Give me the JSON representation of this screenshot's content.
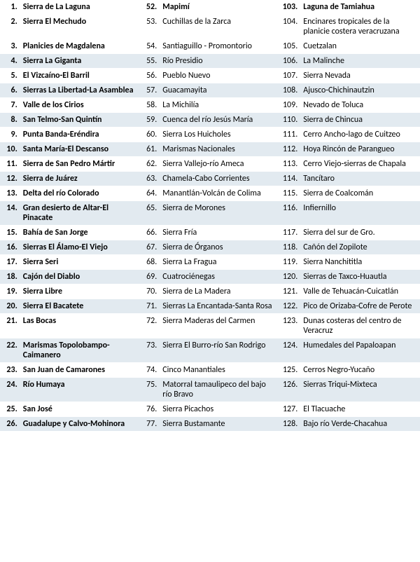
{
  "columns": [
    {
      "start": 1,
      "bold": true
    },
    {
      "start": 52,
      "bold": false
    },
    {
      "start": 103,
      "bold": false
    }
  ],
  "boldRow": 0,
  "rows": [
    {
      "shaded": false,
      "items": [
        "Sierra de La Laguna",
        "Mapimí",
        "Laguna de Tamiahua"
      ]
    },
    {
      "shaded": false,
      "items": [
        "Sierra El Mechudo",
        "Cuchillas de la Zarca",
        "Encinares tropicales de la planicie costera veracruzana"
      ]
    },
    {
      "shaded": false,
      "items": [
        "Planicies de Magdalena",
        "Santiaguillo - Promontorio",
        "Cuetzalan"
      ]
    },
    {
      "shaded": true,
      "items": [
        "Sierra La Giganta",
        "Río Presidio",
        "La Malinche"
      ]
    },
    {
      "shaded": false,
      "items": [
        "El Vizcaíno-El Barril",
        "Pueblo Nuevo",
        "Sierra Nevada"
      ]
    },
    {
      "shaded": true,
      "items": [
        "Sierras La Libertad-La Asamblea",
        "Guacamayita",
        "Ajusco-Chichinautzin"
      ]
    },
    {
      "shaded": false,
      "items": [
        "Valle de los Cirios",
        "La Michilía",
        "Nevado de Toluca"
      ]
    },
    {
      "shaded": true,
      "items": [
        "San Telmo-San Quintín",
        "Cuenca del río Jesús María",
        "Sierra de Chincua"
      ]
    },
    {
      "shaded": false,
      "items": [
        "Punta Banda-Eréndira",
        "Sierra Los Huicholes",
        "Cerro Ancho-lago de Cuitzeo"
      ]
    },
    {
      "shaded": true,
      "items": [
        "Santa María-El Descanso",
        "Marismas Nacionales",
        "Hoya Rincón de Parangueo"
      ]
    },
    {
      "shaded": false,
      "items": [
        "Sierra de San Pedro Mártir",
        "Sierra Vallejo-río Ameca",
        "Cerro Viejo-sierras de Chapala"
      ]
    },
    {
      "shaded": true,
      "items": [
        "Sierra de Juárez",
        "Chamela-Cabo Corrientes",
        "Tancítaro"
      ]
    },
    {
      "shaded": false,
      "items": [
        "Delta del río Colorado",
        "Manantlán-Volcán de Colima",
        "Sierra de Coalcomán"
      ]
    },
    {
      "shaded": true,
      "items": [
        "Gran desierto de Altar-El Pinacate",
        "Sierra de Morones",
        "Infiernillo"
      ]
    },
    {
      "shaded": false,
      "items": [
        "Bahía de San Jorge",
        "Sierra Fría",
        "Sierra del sur de Gro."
      ]
    },
    {
      "shaded": true,
      "items": [
        "Sierras El Álamo-El Viejo",
        "Sierra de Órganos",
        "Cañón del Zopilote"
      ]
    },
    {
      "shaded": false,
      "items": [
        "Sierra Seri",
        "Sierra La Fragua",
        "Sierra Nanchititla"
      ]
    },
    {
      "shaded": true,
      "items": [
        "Cajón del Diablo",
        "Cuatrociénegas",
        "Sierras de Taxco-Huautla"
      ]
    },
    {
      "shaded": false,
      "items": [
        "Sierra Libre",
        "Sierra de La Madera",
        "Valle de Tehuacán-Cuicatlán"
      ]
    },
    {
      "shaded": true,
      "items": [
        "Sierra El Bacatete",
        "Sierras La Encantada-Santa Rosa",
        "Pico de Orizaba-Cofre de Perote"
      ]
    },
    {
      "shaded": false,
      "items": [
        "Las Bocas",
        "Sierra Maderas del Carmen",
        "Dunas costeras del centro de Veracruz"
      ]
    },
    {
      "shaded": true,
      "items": [
        "Marismas Topolobampo-Caimanero",
        "Sierra El Burro-río San Rodrigo",
        "Humedales del Papaloapan"
      ]
    },
    {
      "shaded": false,
      "items": [
        "San Juan de Camarones",
        "Cinco Manantiales",
        "Cerros Negro-Yucaño"
      ]
    },
    {
      "shaded": true,
      "items": [
        "Río Humaya",
        "Matorral tamaulipeco del bajo río Bravo",
        "Sierras Triqui-Mixteca"
      ]
    },
    {
      "shaded": false,
      "items": [
        "San José",
        "Sierra Picachos",
        "El Tlacuache"
      ]
    },
    {
      "shaded": true,
      "items": [
        "Guadalupe y Calvo-Mohinora",
        "Sierra Bustamante",
        "Bajo río Verde-Chacahua"
      ]
    }
  ]
}
